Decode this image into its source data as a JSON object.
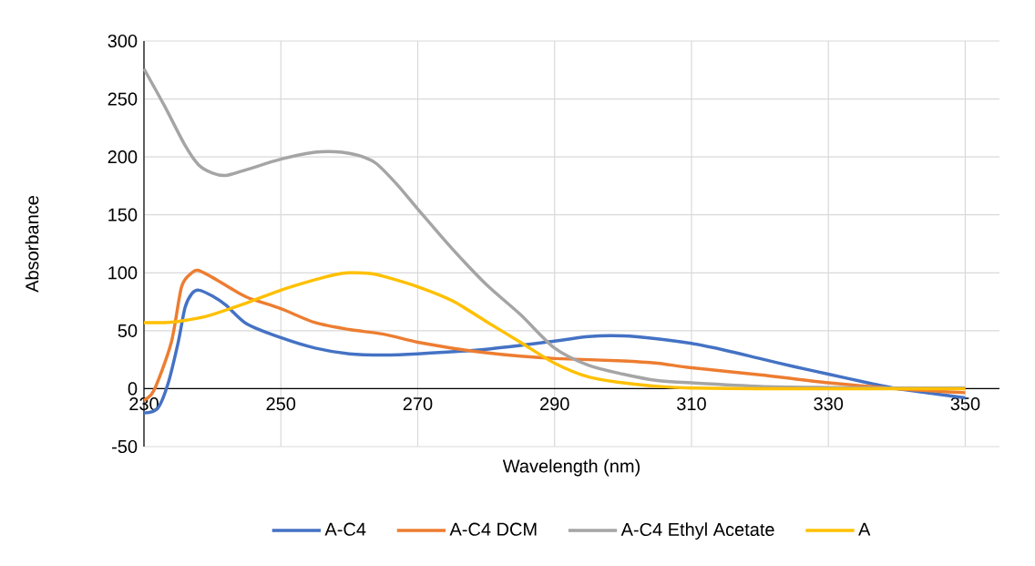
{
  "chart_data": {
    "type": "line",
    "xlabel": "Wavelength (nm)",
    "ylabel": "Absorbance",
    "xlim": [
      230,
      355
    ],
    "ylim": [
      -50,
      300
    ],
    "xticks": [
      230,
      250,
      270,
      290,
      310,
      330,
      350
    ],
    "yticks": [
      -50,
      0,
      50,
      100,
      150,
      200,
      250,
      300
    ],
    "grid": true,
    "legend": "bottom",
    "line_style": "solid",
    "series": [
      {
        "name": "A-C4",
        "color": "#4472c4",
        "x": [
          230,
          232,
          233.5,
          235,
          236,
          237,
          238,
          240,
          242,
          245,
          250,
          255,
          260,
          265,
          270,
          280,
          290,
          295,
          300,
          305,
          310,
          315,
          320,
          325,
          330,
          335,
          340,
          345,
          350
        ],
        "values": [
          -21,
          -17,
          4,
          40,
          70,
          82,
          85,
          80,
          72,
          56,
          44,
          35,
          30,
          29,
          30,
          34,
          41,
          45,
          45.5,
          43,
          39,
          33,
          26,
          19,
          12.5,
          6,
          0,
          -4,
          -8
        ]
      },
      {
        "name": "A-C4 DCM",
        "color": "#ed7d31",
        "x": [
          230,
          231.5,
          234,
          235.5,
          237,
          238,
          240,
          242,
          245,
          250,
          255,
          260,
          265,
          270,
          275,
          280,
          285,
          290,
          300,
          305,
          310,
          320,
          330,
          340,
          350
        ],
        "values": [
          -10,
          -1,
          40,
          88,
          100,
          102,
          96,
          89,
          79,
          69,
          57,
          51,
          47,
          40,
          35,
          31,
          28,
          26,
          24,
          22,
          18,
          12,
          5,
          0,
          -3.5
        ]
      },
      {
        "name": "A-C4 Ethyl Acetate",
        "color": "#a5a5a5",
        "x": [
          230,
          233,
          236,
          238,
          240,
          242,
          245,
          250,
          255,
          258,
          260,
          262,
          264,
          267,
          270,
          275,
          280,
          285,
          290,
          295,
          300,
          305,
          310,
          320,
          330,
          340,
          350
        ],
        "values": [
          276,
          244,
          210,
          193,
          186,
          184,
          189,
          198,
          204,
          204.5,
          203,
          200,
          194,
          176,
          155,
          121,
          90,
          64,
          35,
          20,
          12.5,
          7,
          5,
          2,
          1,
          0.5,
          0.5
        ]
      },
      {
        "name": "A",
        "color": "#ffc000",
        "x": [
          230,
          233,
          235,
          238,
          240,
          245,
          250,
          255,
          258,
          260,
          263,
          265,
          270,
          275,
          280,
          285,
          290,
          295,
          300,
          305,
          310,
          320,
          330,
          340,
          350
        ],
        "values": [
          57,
          57,
          58,
          61,
          64,
          74,
          85,
          94,
          98.5,
          100,
          99.5,
          97,
          88,
          76,
          58,
          40,
          22,
          10,
          5,
          2,
          0.5,
          0,
          0,
          0,
          0
        ]
      }
    ]
  }
}
